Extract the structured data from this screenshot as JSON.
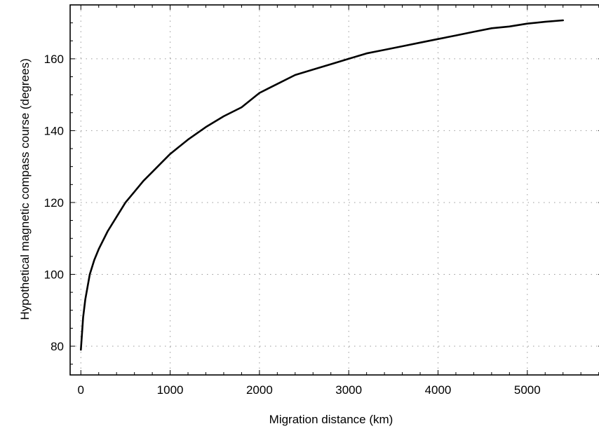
{
  "chart_data": {
    "type": "line",
    "title": "",
    "xlabel": "Migration distance (km)",
    "ylabel": "Hypothetical magnetic compass course (degrees)",
    "xlim": [
      -120,
      5850
    ],
    "ylim": [
      72,
      175
    ],
    "x_ticks": [
      0,
      1000,
      2000,
      3000,
      4000,
      5000
    ],
    "x_tick_labels": [
      "0",
      "1000",
      "2000",
      "3000",
      "4000",
      "5000"
    ],
    "y_ticks": [
      80,
      100,
      120,
      140,
      160
    ],
    "y_tick_labels": [
      "80",
      "100",
      "120",
      "140",
      "160"
    ],
    "grid": true,
    "legend": "none",
    "series": [
      {
        "x": [
          0,
          25,
          50,
          100,
          150,
          200,
          300,
          400,
          500,
          600,
          700,
          800,
          900,
          1000,
          1200,
          1400,
          1600,
          1800,
          2000,
          2200,
          2400,
          2600,
          2800,
          3000,
          3200,
          3400,
          3600,
          3800,
          4000,
          4200,
          4400,
          4600,
          4800,
          5000,
          5200,
          5400
        ],
        "y": [
          79,
          88,
          93,
          100,
          104,
          107,
          112,
          116,
          120,
          123,
          126,
          128.5,
          131,
          133.5,
          137.5,
          141,
          144,
          146.5,
          150.5,
          153,
          155.5,
          157,
          158.5,
          160,
          161.5,
          162.5,
          163.5,
          164.5,
          165.5,
          166.5,
          167.5,
          168.5,
          169,
          169.8,
          170.3,
          170.7
        ]
      }
    ]
  }
}
